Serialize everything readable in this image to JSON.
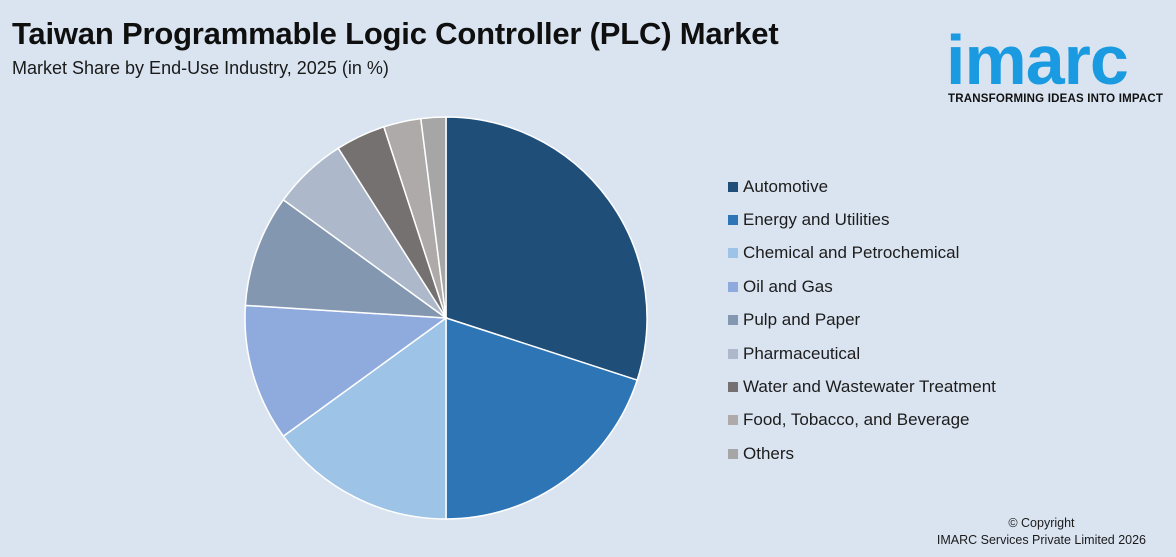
{
  "header": {
    "title": "Taiwan Programmable Logic Controller (PLC) Market",
    "subtitle": "Market Share by End-Use Industry, 2025 (in %)"
  },
  "logo": {
    "word": "imarc",
    "tagline": "TRANSFORMING IDEAS INTO IMPACT",
    "color": "#1a9ae0"
  },
  "footer": {
    "line1": "© Copyright",
    "line2": "IMARC Services Private Limited 2026"
  },
  "chart_data": {
    "type": "pie",
    "title": "Taiwan Programmable Logic Controller (PLC) Market",
    "subtitle": "Market Share by End-Use Industry, 2025 (in %)",
    "legend_position": "right",
    "start_angle_deg": 0,
    "direction": "clockwise",
    "slices": [
      {
        "label": "Automotive",
        "value": 30,
        "color": "#1f4e79"
      },
      {
        "label": "Energy and Utilities",
        "value": 20,
        "color": "#2e75b6"
      },
      {
        "label": "Chemical and Petrochemical",
        "value": 15,
        "color": "#9dc3e6"
      },
      {
        "label": "Oil and Gas",
        "value": 11,
        "color": "#8faadc"
      },
      {
        "label": "Pulp and Paper",
        "value": 9,
        "color": "#8497b0"
      },
      {
        "label": "Pharmaceutical",
        "value": 6,
        "color": "#adb9ca"
      },
      {
        "label": "Water and Wastewater Treatment",
        "value": 4,
        "color": "#767171"
      },
      {
        "label": "Food, Tobacco, and Beverage",
        "value": 3,
        "color": "#aeaaaa"
      },
      {
        "label": "Others",
        "value": 2,
        "color": "#a6a6a6"
      }
    ]
  }
}
